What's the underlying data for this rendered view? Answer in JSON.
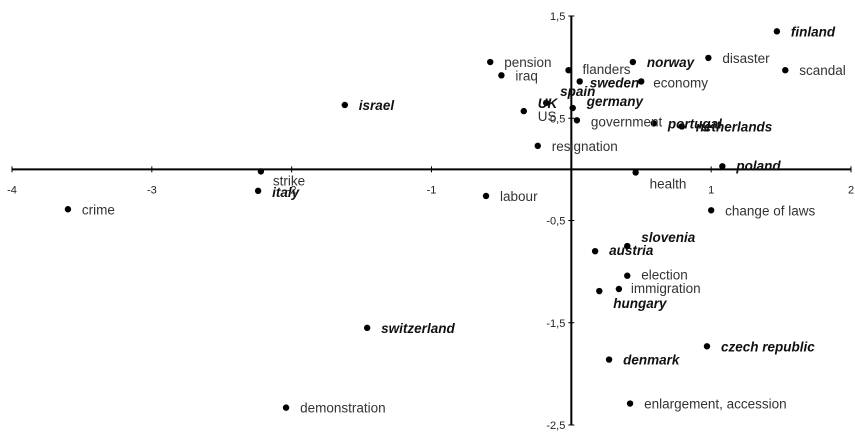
{
  "chart_data": {
    "type": "scatter",
    "title": "",
    "xlabel": "",
    "ylabel": "",
    "xlim": [
      -4,
      2
    ],
    "ylim": [
      -2.5,
      1.5
    ],
    "xticks": [
      {
        "value": -4,
        "label": "-4"
      },
      {
        "value": -3,
        "label": "-3"
      },
      {
        "value": -2,
        "label": "-2"
      },
      {
        "value": -1,
        "label": "-1"
      },
      {
        "value": 0,
        "label": "0"
      },
      {
        "value": 1,
        "label": "1"
      },
      {
        "value": 2,
        "label": "2"
      }
    ],
    "yticks": [
      {
        "value": 1.5,
        "label": "1,5"
      },
      {
        "value": 0.5,
        "label": "0,5"
      },
      {
        "value": -0.5,
        "label": "-0,5"
      },
      {
        "value": -1.5,
        "label": "-1,5"
      },
      {
        "value": -2.5,
        "label": "-2,5"
      }
    ],
    "grid": false,
    "legend": "none",
    "colors": {
      "points": "#000000",
      "axes": "#000000",
      "labels": "#333333"
    },
    "points": [
      {
        "label": "finland",
        "x": 1.47,
        "y": 1.35,
        "country": true
      },
      {
        "label": "norway",
        "x": 0.44,
        "y": 1.05,
        "country": true
      },
      {
        "label": "disaster",
        "x": 0.98,
        "y": 1.09,
        "country": false
      },
      {
        "label": "scandal",
        "x": 1.53,
        "y": 0.97,
        "country": false
      },
      {
        "label": "pension",
        "x": -0.58,
        "y": 1.05,
        "country": false
      },
      {
        "label": "iraq",
        "x": -0.5,
        "y": 0.92,
        "country": false
      },
      {
        "label": "flanders",
        "x": -0.02,
        "y": 0.97,
        "country": false
      },
      {
        "label": "sweden",
        "x": 0.06,
        "y": 0.86,
        "country": true
      },
      {
        "label": "economy",
        "x": 0.5,
        "y": 0.86,
        "country": false
      },
      {
        "label": "israel",
        "x": -1.62,
        "y": 0.63,
        "country": true
      },
      {
        "label": "spain",
        "x": -0.18,
        "y": 0.65,
        "country": true
      },
      {
        "label": "germany",
        "x": 0.01,
        "y": 0.6,
        "country": true
      },
      {
        "label": "UK",
        "x": -0.34,
        "y": 0.57,
        "country": true
      },
      {
        "label": "US",
        "x": -0.34,
        "y": 0.57,
        "country": false
      },
      {
        "label": "government",
        "x": 0.04,
        "y": 0.48,
        "country": false
      },
      {
        "label": "portugal",
        "x": 0.59,
        "y": 0.45,
        "country": true
      },
      {
        "label": "netherlands",
        "x": 0.79,
        "y": 0.42,
        "country": true
      },
      {
        "label": "resignation",
        "x": -0.24,
        "y": 0.23,
        "country": false
      },
      {
        "label": "poland",
        "x": 1.08,
        "y": 0.03,
        "country": true
      },
      {
        "label": "health",
        "x": 0.46,
        "y": -0.03,
        "country": false
      },
      {
        "label": "strike",
        "x": -2.22,
        "y": -0.02,
        "country": false
      },
      {
        "label": "italy",
        "x": -2.24,
        "y": -0.21,
        "country": true
      },
      {
        "label": "labour",
        "x": -0.61,
        "y": -0.26,
        "country": false
      },
      {
        "label": "crime",
        "x": -3.6,
        "y": -0.39,
        "country": false
      },
      {
        "label": "change of laws",
        "x": 1.0,
        "y": -0.4,
        "country": false
      },
      {
        "label": "slovenia",
        "x": 0.4,
        "y": -0.75,
        "country": true
      },
      {
        "label": "austria",
        "x": 0.17,
        "y": -0.8,
        "country": true
      },
      {
        "label": "election",
        "x": 0.4,
        "y": -1.04,
        "country": false
      },
      {
        "label": "immigration",
        "x": 0.34,
        "y": -1.17,
        "country": false
      },
      {
        "label": "hungary",
        "x": 0.2,
        "y": -1.19,
        "country": true
      },
      {
        "label": "switzerland",
        "x": -1.46,
        "y": -1.55,
        "country": true
      },
      {
        "label": "czech republic",
        "x": 0.97,
        "y": -1.73,
        "country": true
      },
      {
        "label": "denmark",
        "x": 0.27,
        "y": -1.86,
        "country": true
      },
      {
        "label": "demonstration",
        "x": -2.04,
        "y": -2.33,
        "country": false
      },
      {
        "label": "enlargement, accession",
        "x": 0.42,
        "y": -2.29,
        "country": false
      }
    ]
  }
}
